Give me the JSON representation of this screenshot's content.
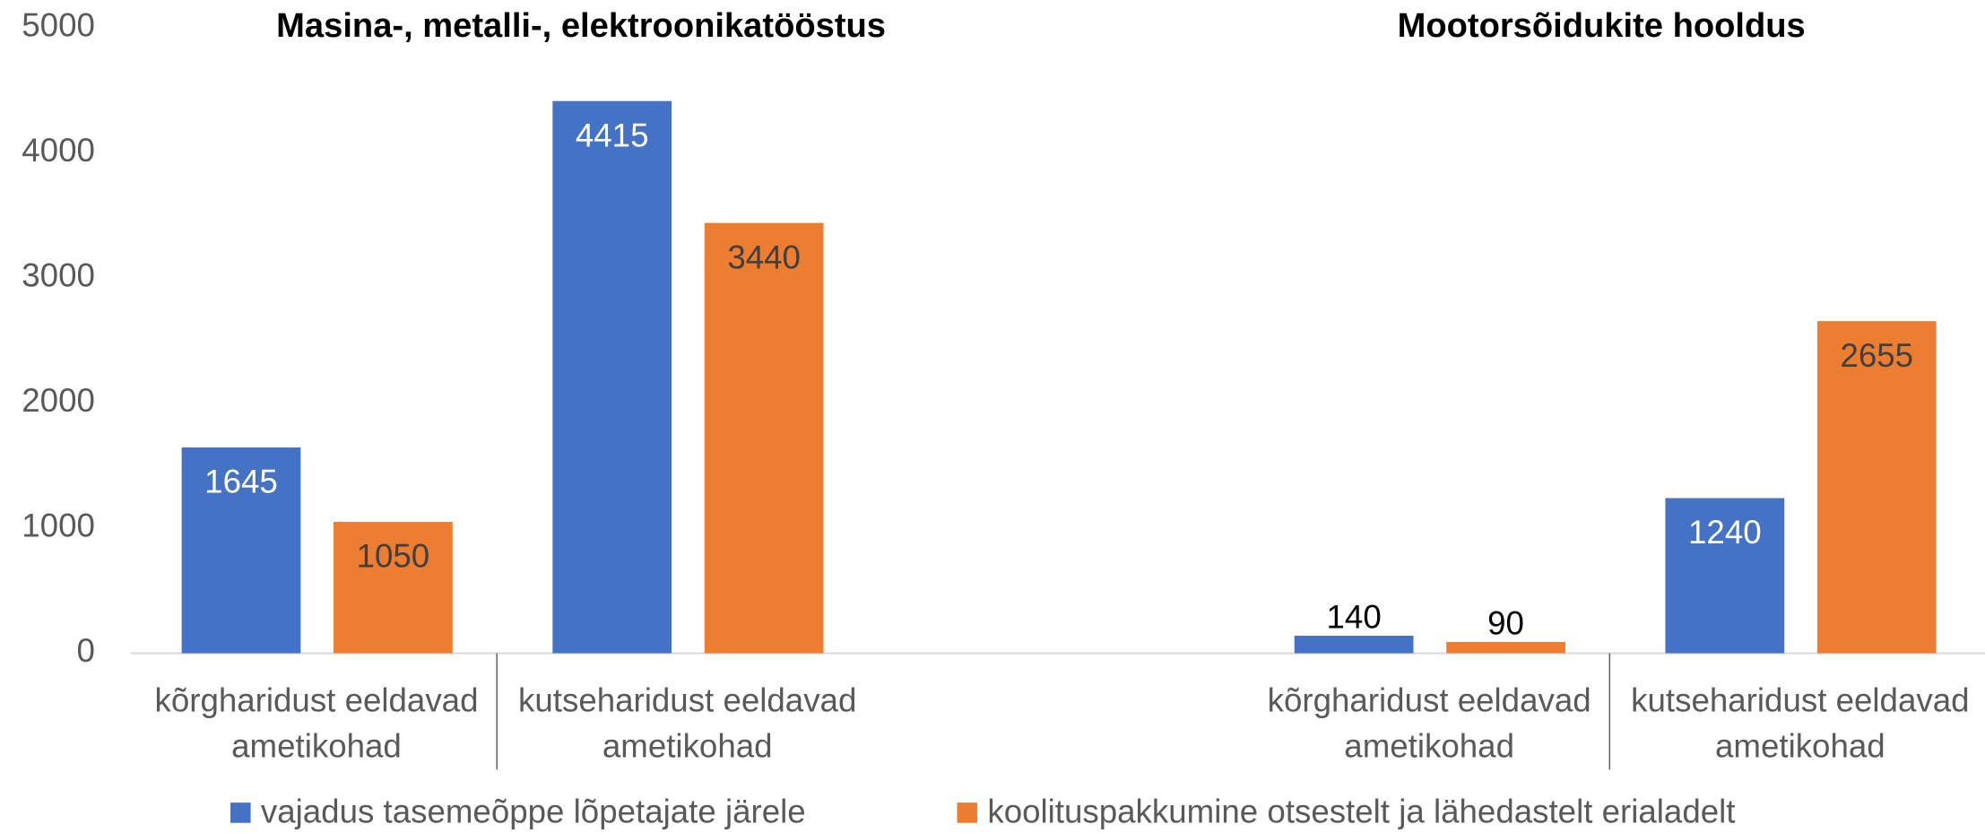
{
  "chart_data": {
    "type": "bar",
    "groups": [
      {
        "title": "Masina-, metalli-, elektroonikatööstus",
        "categories": [
          "kõrgharidust eeldavad ametikohad",
          "kutseharidust eeldavad ametikohad"
        ]
      },
      {
        "title": "Mootorsõidukite hooldus",
        "categories": [
          "kõrgharidust eeldavad ametikohad",
          "kutseharidust eeldavad ametikohad"
        ]
      }
    ],
    "series": [
      {
        "name": "vajadus tasemeõppe lõpetajate järele",
        "color": "#4472c4",
        "values": [
          [
            1645,
            4415
          ],
          [
            140,
            1240
          ]
        ]
      },
      {
        "name": "koolituspakkumine otsestelt ja lähedastelt erialadelt",
        "color": "#ed7d31",
        "values": [
          [
            1050,
            3440
          ],
          [
            90,
            2655
          ]
        ]
      }
    ],
    "ylim": [
      0,
      5000
    ],
    "yticks": [
      0,
      1000,
      2000,
      3000,
      4000,
      5000
    ],
    "legend": "bottom"
  }
}
